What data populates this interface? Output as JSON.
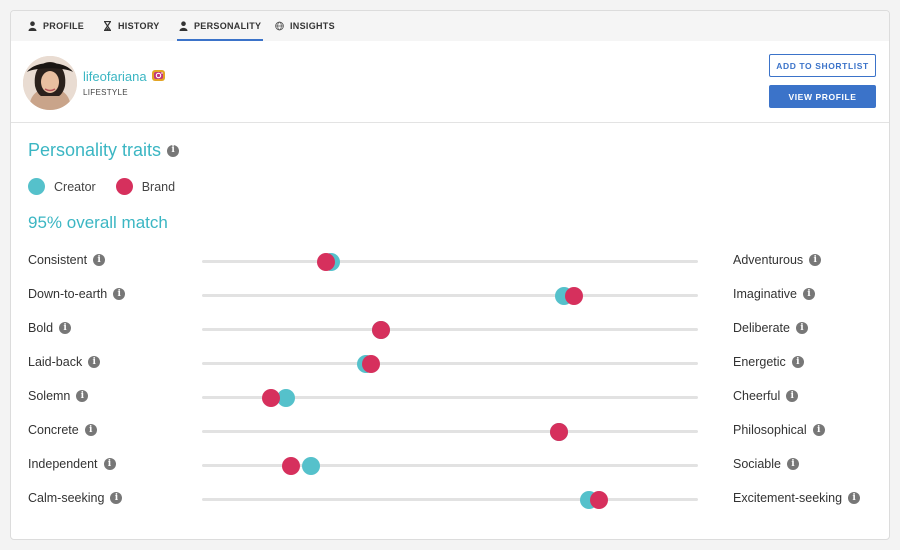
{
  "colors": {
    "creator": "#55c1cb",
    "brand": "#d6305d",
    "accent": "#3b73c9",
    "teal": "#3bb6c3"
  },
  "tabs": [
    {
      "label": "PROFILE",
      "icon": "person-icon"
    },
    {
      "label": "HISTORY",
      "icon": "hourglass-icon"
    },
    {
      "label": "PERSONALITY",
      "icon": "person-icon",
      "active": true
    },
    {
      "label": "INSIGHTS",
      "icon": "globe-icon"
    }
  ],
  "profile": {
    "username": "lifeofariana",
    "category": "LIFESTYLE",
    "platform_icon": "instagram-icon"
  },
  "actions": {
    "shortlist_label": "ADD TO SHORTLIST",
    "view_profile_label": "VIEW PROFILE"
  },
  "section": {
    "title": "Personality traits",
    "match_text": "95% overall match"
  },
  "legend": [
    {
      "name": "Creator"
    },
    {
      "name": "Brand"
    }
  ],
  "traits": [
    {
      "left": "Consistent",
      "right": "Adventurous",
      "creator": 0.26,
      "brand": 0.25
    },
    {
      "left": "Down-to-earth",
      "right": "Imaginative",
      "creator": 0.73,
      "brand": 0.75
    },
    {
      "left": "Bold",
      "right": "Deliberate",
      "creator": 0.36,
      "brand": 0.36
    },
    {
      "left": "Laid-back",
      "right": "Energetic",
      "creator": 0.33,
      "brand": 0.34
    },
    {
      "left": "Solemn",
      "right": "Cheerful",
      "creator": 0.17,
      "brand": 0.14
    },
    {
      "left": "Concrete",
      "right": "Philosophical",
      "creator": 0.72,
      "brand": 0.72
    },
    {
      "left": "Independent",
      "right": "Sociable",
      "creator": 0.22,
      "brand": 0.18
    },
    {
      "left": "Calm-seeking",
      "right": "Excitement-seeking",
      "creator": 0.78,
      "brand": 0.8
    }
  ]
}
